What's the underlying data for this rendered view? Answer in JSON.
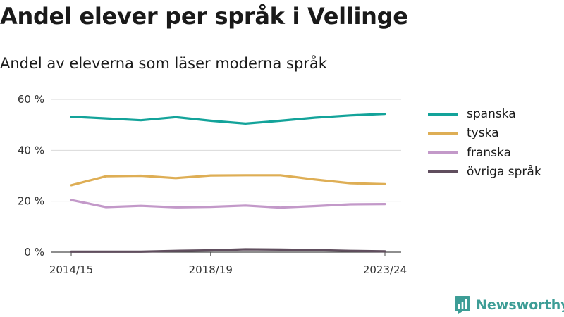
{
  "header": {
    "title": "Andel elever per språk i Vellinge",
    "subtitle": "Andel av eleverna som läser moderna språk"
  },
  "brand": {
    "name": "Newsworthy",
    "icon": "bar-chart-icon",
    "color": "#3d9d96"
  },
  "chart_data": {
    "type": "line",
    "x_tick_labels": [
      "2014/15",
      "2018/19",
      "2023/24"
    ],
    "x_tick_positions": [
      0,
      4,
      9
    ],
    "y_ticks": [
      0,
      20,
      40,
      60
    ],
    "y_tick_suffix": " %",
    "ylim": [
      0,
      60
    ],
    "grid": true,
    "legend_position": "right",
    "series": [
      {
        "name": "spanska",
        "color": "#13a39a",
        "values": [
          53.2,
          52.5,
          51.8,
          53.0,
          51.6,
          50.5,
          51.6,
          52.8,
          53.7,
          54.3
        ]
      },
      {
        "name": "tyska",
        "color": "#deae55",
        "values": [
          26.3,
          29.8,
          30.0,
          29.1,
          30.1,
          30.2,
          30.2,
          28.5,
          27.1,
          26.7
        ]
      },
      {
        "name": "franska",
        "color": "#c399c9",
        "values": [
          20.5,
          17.7,
          18.2,
          17.6,
          17.8,
          18.3,
          17.5,
          18.1,
          18.8,
          18.9
        ]
      },
      {
        "name": "övriga språk",
        "color": "#604e5e",
        "values": [
          0.2,
          0.2,
          0.2,
          0.5,
          0.7,
          1.1,
          1.0,
          0.8,
          0.5,
          0.3
        ]
      }
    ]
  }
}
